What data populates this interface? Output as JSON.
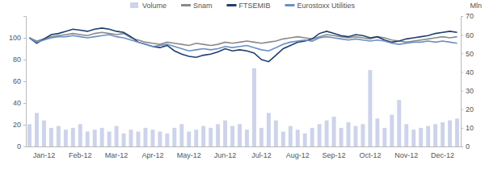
{
  "chart_data": {
    "type": "line",
    "y2label": "Mln",
    "legend": "top",
    "categories": [
      null,
      null,
      "Jan-12",
      null,
      null,
      null,
      null,
      "Feb-12",
      null,
      null,
      null,
      null,
      "Mar-12",
      null,
      null,
      null,
      null,
      "Apr-12",
      null,
      null,
      null,
      null,
      "May-12",
      null,
      null,
      null,
      null,
      "Jun-12",
      null,
      null,
      null,
      null,
      "Jul-12",
      null,
      null,
      null,
      null,
      "Aug-12",
      null,
      null,
      null,
      null,
      "Sep-12",
      null,
      null,
      null,
      null,
      "Oct-12",
      null,
      null,
      null,
      null,
      "Nov-12",
      null,
      null,
      null,
      null,
      "Dec-12",
      null,
      null
    ],
    "ylim": [
      0,
      120
    ],
    "yticks": [
      0,
      20,
      40,
      60,
      80,
      100
    ],
    "y2lim": [
      0,
      70
    ],
    "y2ticks": [
      0,
      10,
      20,
      30,
      40,
      50,
      60,
      70
    ],
    "series": [
      {
        "name": "Volume",
        "type": "bar",
        "axis": "y2",
        "color": "#cdd3ea",
        "values": [
          12,
          18,
          14,
          10,
          11,
          9,
          10,
          12,
          8,
          9,
          10,
          8,
          11,
          7,
          9,
          8,
          10,
          9,
          8,
          7,
          10,
          12,
          8,
          9,
          11,
          10,
          12,
          14,
          11,
          12,
          9,
          42,
          10,
          18,
          14,
          8,
          11,
          9,
          7,
          10,
          12,
          14,
          16,
          10,
          13,
          11,
          12,
          41,
          15,
          10,
          17,
          25,
          12,
          9,
          10,
          11,
          12,
          13,
          14,
          15
        ]
      },
      {
        "name": "Snam",
        "type": "line",
        "color": "#8a8a8a",
        "values": [
          100,
          97,
          99,
          101,
          102,
          103,
          104,
          103,
          102,
          104,
          105,
          104,
          103,
          104,
          100,
          98,
          96,
          95,
          94,
          96,
          95,
          94,
          93,
          95,
          94,
          93,
          94,
          96,
          95,
          96,
          97,
          96,
          95,
          96,
          97,
          99,
          100,
          101,
          100,
          99,
          101,
          103,
          102,
          101,
          100,
          101,
          100,
          99,
          101,
          100,
          98,
          97,
          96,
          97,
          98,
          99,
          100,
          101,
          100,
          101
        ]
      },
      {
        "name": "FTSEMIB",
        "type": "line",
        "color": "#1d3f6e",
        "values": [
          100,
          95,
          99,
          103,
          104,
          106,
          108,
          107,
          106,
          108,
          109,
          108,
          106,
          105,
          101,
          96,
          94,
          92,
          91,
          93,
          88,
          85,
          83,
          82,
          84,
          85,
          87,
          90,
          88,
          89,
          88,
          86,
          80,
          78,
          84,
          90,
          93,
          96,
          97,
          99,
          104,
          106,
          104,
          102,
          101,
          103,
          102,
          100,
          101,
          98,
          96,
          97,
          99,
          100,
          101,
          102,
          104,
          105,
          106,
          105
        ]
      },
      {
        "name": "Eurostoxx Utilities",
        "type": "line",
        "color": "#6b8fc2",
        "values": [
          100,
          96,
          98,
          100,
          101,
          101,
          102,
          101,
          100,
          101,
          102,
          103,
          101,
          100,
          98,
          96,
          94,
          92,
          93,
          94,
          92,
          90,
          88,
          89,
          90,
          89,
          90,
          92,
          91,
          92,
          93,
          91,
          89,
          88,
          91,
          94,
          96,
          97,
          98,
          97,
          100,
          101,
          100,
          99,
          98,
          99,
          98,
          97,
          98,
          97,
          95,
          94,
          95,
          96,
          96,
          97,
          96,
          97,
          96,
          95
        ]
      }
    ]
  }
}
